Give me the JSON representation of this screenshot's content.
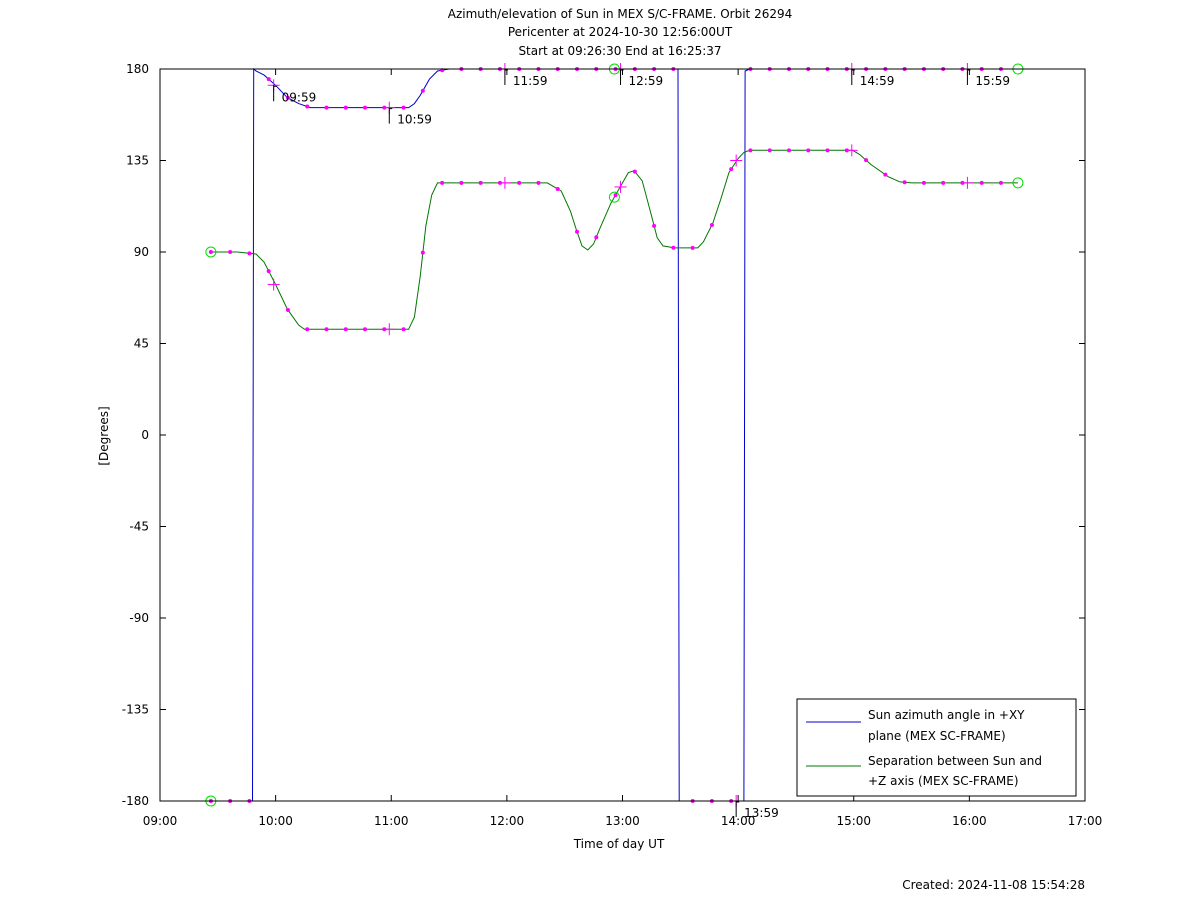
{
  "chart_data": {
    "type": "line",
    "title": [
      "Azimuth/elevation of Sun in MEX S/C-FRAME.  Orbit 26294",
      "Pericenter at 2024-10-30 12:56:00UT",
      "Start at 09:26:30 End at 16:25:37"
    ],
    "xlabel": "Time of day UT",
    "ylabel": "[Degrees]",
    "xlim": [
      9.0,
      17.0
    ],
    "ylim": [
      -180,
      180
    ],
    "xticks": [
      9,
      10,
      11,
      12,
      13,
      14,
      15,
      16,
      17
    ],
    "xtick_labels": [
      "09:00",
      "10:00",
      "11:00",
      "12:00",
      "13:00",
      "14:00",
      "15:00",
      "16:00",
      "17:00"
    ],
    "yticks": [
      180,
      135,
      90,
      45,
      0,
      -45,
      -90,
      -135,
      -180
    ],
    "ytick_labels": [
      "180",
      "135",
      "90",
      "45",
      "0",
      "-45",
      "-90",
      "-135",
      "-180"
    ],
    "legend_position": "bottom-right",
    "series": [
      {
        "name": "Sun azimuth angle in +XY plane (MEX SC-FRAME)",
        "legend_lines": [
          "Sun azimuth angle in +XY",
          "plane (MEX SC-FRAME)"
        ],
        "color": "#0000cc",
        "x": [
          9.44,
          9.8,
          9.81,
          9.83,
          9.9,
          10.0,
          10.1,
          10.2,
          10.3,
          10.4,
          10.6,
          10.8,
          11.0,
          11.15,
          11.2,
          11.25,
          11.33,
          11.4,
          11.5,
          12.0,
          12.5,
          13.0,
          13.48,
          13.49,
          13.5,
          14.0,
          14.05,
          14.055,
          14.06,
          14.1,
          14.5,
          15.0,
          15.5,
          16.0,
          16.42
        ],
        "y": [
          -180,
          -180,
          180,
          179,
          177,
          172,
          166,
          163,
          161,
          161,
          161,
          161,
          161,
          161,
          163,
          167,
          175,
          179,
          180,
          180,
          180,
          180,
          180,
          -180,
          -180,
          -180,
          -180,
          0,
          179,
          180,
          180,
          180,
          180,
          180,
          180
        ]
      },
      {
        "name": "Separation between Sun and +Z axis (MEX SC-FRAME)",
        "legend_lines": [
          "Separation between Sun and",
          "+Z axis (MEX SC-FRAME)"
        ],
        "color": "#007700",
        "x": [
          9.44,
          9.67,
          9.83,
          9.9,
          10.0,
          10.1,
          10.15,
          10.2,
          10.25,
          10.3,
          10.5,
          10.7,
          11.0,
          11.15,
          11.2,
          11.25,
          11.3,
          11.35,
          11.4,
          11.5,
          12.0,
          12.35,
          12.47,
          12.55,
          12.6,
          12.65,
          12.7,
          12.75,
          12.8,
          12.9,
          13.0,
          13.05,
          13.1,
          13.17,
          13.25,
          13.3,
          13.35,
          13.45,
          13.65,
          13.7,
          13.78,
          13.85,
          13.92,
          14.0,
          14.05,
          14.1,
          14.5,
          14.99,
          15.05,
          15.15,
          15.3,
          15.4,
          15.5,
          16.0,
          16.42
        ],
        "y": [
          90,
          90,
          89,
          85,
          74,
          62,
          58,
          54,
          52,
          52,
          52,
          52,
          52,
          52,
          58,
          78,
          103,
          118,
          124,
          124,
          124,
          124,
          120,
          110,
          101,
          93,
          91,
          94,
          101,
          114,
          124,
          129,
          130,
          125,
          108,
          97,
          93,
          92,
          92,
          95,
          104,
          116,
          129,
          136,
          139,
          140,
          140,
          140,
          138,
          133,
          127,
          124.5,
          124,
          124,
          124
        ]
      }
    ],
    "special_markers": [
      {
        "x": 9.44,
        "y": 90
      },
      {
        "x": 9.44,
        "y": -180
      },
      {
        "x": 12.93,
        "y": 180
      },
      {
        "x": 12.93,
        "y": 117
      },
      {
        "x": 16.42,
        "y": 180
      },
      {
        "x": 16.42,
        "y": 124
      }
    ],
    "time_annotations": [
      {
        "label": "09:59",
        "x": 9.983,
        "y": 172
      },
      {
        "label": "10:59",
        "x": 10.983,
        "y": 161
      },
      {
        "label": "11:59",
        "x": 11.983,
        "y": 180
      },
      {
        "label": "12:59",
        "x": 12.983,
        "y": 180
      },
      {
        "label": "13:59",
        "x": 13.983,
        "y": -180
      },
      {
        "label": "14:59",
        "x": 14.983,
        "y": 180
      },
      {
        "label": "15:59",
        "x": 15.983,
        "y": 180
      }
    ]
  },
  "footer": {
    "created": "Created: 2024-11-08 15:54:28"
  }
}
